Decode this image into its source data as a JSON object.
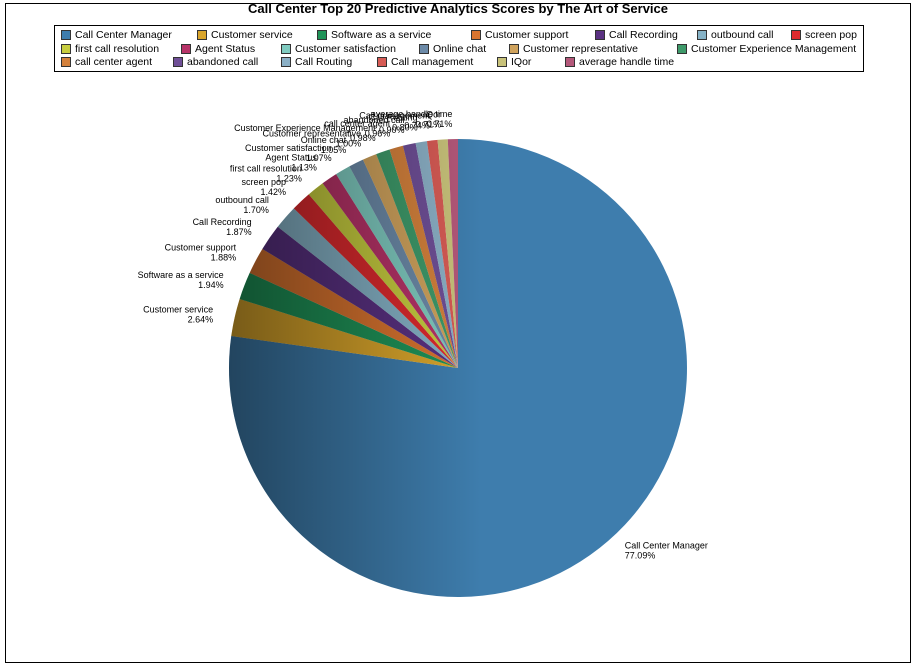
{
  "chart_data": {
    "type": "pie",
    "title": "Call Center Top 20 Predictive Analytics Scores by The Art of Service",
    "legend_position": "top",
    "slices": [
      {
        "label": "Call Center Manager",
        "value": 77.09,
        "value_label": "77.09%",
        "color": "#3e7dad"
      },
      {
        "label": "Customer service",
        "value": 2.64,
        "value_label": "2.64%",
        "color": "#d9a52b"
      },
      {
        "label": "Software as a service",
        "value": 1.94,
        "value_label": "1.94%",
        "color": "#1f9358"
      },
      {
        "label": "Customer support",
        "value": 1.88,
        "value_label": "1.88%",
        "color": "#d9742f"
      },
      {
        "label": "Call Recording",
        "value": 1.87,
        "value_label": "1.87%",
        "color": "#5a3182"
      },
      {
        "label": "outbound call",
        "value": 1.7,
        "value_label": "1.70%",
        "color": "#86b3c7"
      },
      {
        "label": "screen pop",
        "value": 1.42,
        "value_label": "1.42%",
        "color": "#dd2a2e"
      },
      {
        "label": "first call resolution",
        "value": 1.23,
        "value_label": "1.23%",
        "color": "#c7cd3f"
      },
      {
        "label": "Agent Status",
        "value": 1.13,
        "value_label": "1.13%",
        "color": "#b73368"
      },
      {
        "label": "Customer satisfaction",
        "value": 1.07,
        "value_label": "1.07%",
        "color": "#7fcbc0"
      },
      {
        "label": "Online chat",
        "value": 1.05,
        "value_label": "1.05%",
        "color": "#6c8aa8"
      },
      {
        "label": "Customer representative",
        "value": 1.0,
        "value_label": "1.00%",
        "color": "#d0a35d"
      },
      {
        "label": "Customer Experience Management",
        "value": 0.98,
        "value_label": "0.98%",
        "color": "#3e9a6a"
      },
      {
        "label": "call center agent",
        "value": 0.96,
        "value_label": "0.96%",
        "color": "#d4813c"
      },
      {
        "label": "abandoned call",
        "value": 0.9,
        "value_label": "0.90%",
        "color": "#6f4f97"
      },
      {
        "label": "Call Routing",
        "value": 0.8,
        "value_label": "0.80%",
        "color": "#8bb0c6"
      },
      {
        "label": "Call management",
        "value": 0.74,
        "value_label": "0.74%",
        "color": "#d75b55"
      },
      {
        "label": "IQor",
        "value": 0.71,
        "value_label": "0.71%",
        "color": "#c8c27a"
      },
      {
        "label": "average handle time",
        "value": 0.71,
        "value_label": "0.71%",
        "color": "#b4587a"
      }
    ]
  }
}
